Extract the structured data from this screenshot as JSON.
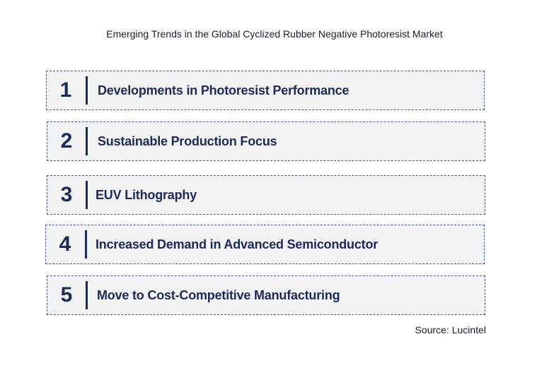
{
  "title": "Emerging Trends in the Global Cyclized Rubber Negative Photoresist Market",
  "items": [
    {
      "number": "1",
      "label": "Developments in Photoresist Performance"
    },
    {
      "number": "2",
      "label": "Sustainable Production Focus"
    },
    {
      "number": "3",
      "label": "EUV Lithography"
    },
    {
      "number": "4",
      "label": "Increased Demand in Advanced Semiconductor"
    },
    {
      "number": "5",
      "label": "Move to Cost-Competitive Manufacturing"
    }
  ],
  "source": "Source: Lucintel",
  "colors": {
    "accent": "#1c2a5a",
    "row_background": "#f2f2f2",
    "border": "#4a5a8a"
  }
}
